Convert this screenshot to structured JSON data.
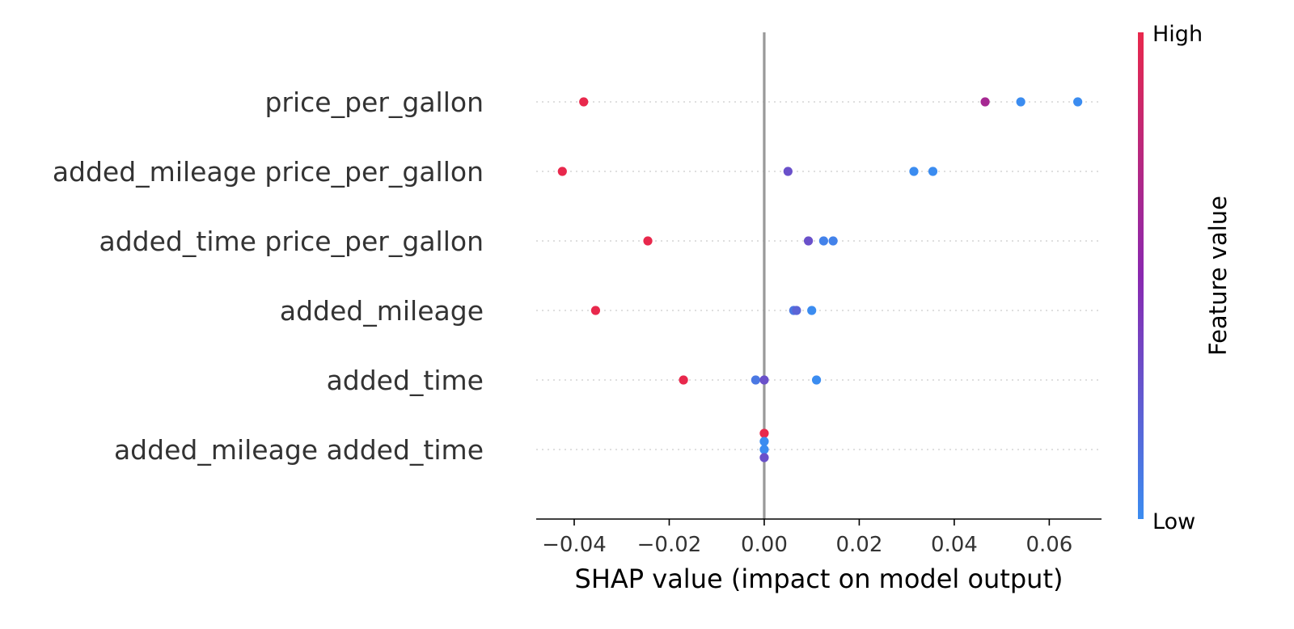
{
  "chart_data": {
    "type": "scatter",
    "features": [
      "price_per_gallon",
      "added_mileage price_per_gallon",
      "added_time price_per_gallon",
      "added_mileage",
      "added_time",
      "added_mileage added_time"
    ],
    "points": [
      [
        {
          "x": -0.038,
          "v": 1.0
        },
        {
          "x": 0.0465,
          "v": 0.65
        },
        {
          "x": 0.054,
          "v": 0.0
        },
        {
          "x": 0.066,
          "v": 0.0
        }
      ],
      [
        {
          "x": -0.0425,
          "v": 1.0
        },
        {
          "x": 0.005,
          "v": 0.3
        },
        {
          "x": 0.0315,
          "v": 0.0
        },
        {
          "x": 0.0355,
          "v": 0.0
        }
      ],
      [
        {
          "x": -0.0245,
          "v": 1.0
        },
        {
          "x": 0.0093,
          "v": 0.3
        },
        {
          "x": 0.0125,
          "v": 0.05
        },
        {
          "x": 0.0145,
          "v": 0.05
        }
      ],
      [
        {
          "x": -0.0355,
          "v": 1.0
        },
        {
          "x": 0.0062,
          "v": 0.1
        },
        {
          "x": 0.0068,
          "v": 0.2
        },
        {
          "x": 0.01,
          "v": 0.0
        }
      ],
      [
        {
          "x": -0.017,
          "v": 1.0
        },
        {
          "x": -0.0018,
          "v": 0.1
        },
        {
          "x": 0.0,
          "v": 0.3
        },
        {
          "x": 0.011,
          "v": 0.0
        }
      ],
      [
        {
          "x": 0.0,
          "v": 1.0,
          "offset": -2
        },
        {
          "x": 0.0,
          "v": 0.0,
          "offset": -1
        },
        {
          "x": 0.0,
          "v": 0.0,
          "offset": 0
        },
        {
          "x": 0.0,
          "v": 0.3,
          "offset": 1
        }
      ]
    ],
    "xlim": [
      -0.048,
      0.071
    ],
    "xticks": [
      -0.04,
      -0.02,
      0.0,
      0.02,
      0.04,
      0.06
    ],
    "xtick_labels": [
      "−0.04",
      "−0.02",
      "0.00",
      "0.02",
      "0.04",
      "0.06"
    ],
    "xlabel": "SHAP value (impact on model output)",
    "colorbar": {
      "title": "Feature value",
      "high_label": "High",
      "low_label": "Low",
      "low_color": "#3b8cf0",
      "mid_color": "#8a28b0",
      "high_color": "#e8284c"
    },
    "zero_line_color": "#999999",
    "grid_color": "#cccccc"
  }
}
